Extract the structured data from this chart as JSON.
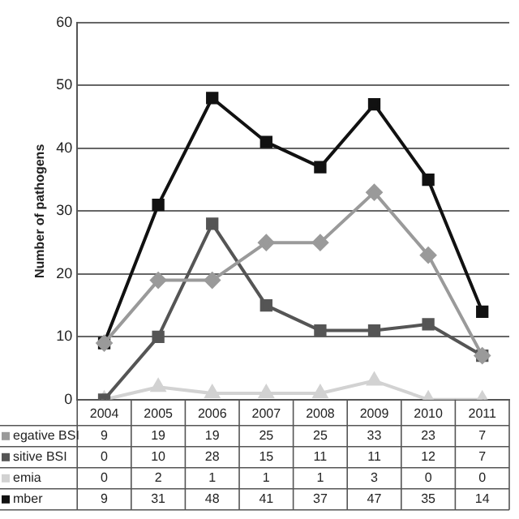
{
  "chart_data": {
    "type": "line",
    "ylabel": "Number of pathogens",
    "categories": [
      "2004",
      "2005",
      "2006",
      "2007",
      "2008",
      "2009",
      "2010",
      "2011"
    ],
    "series": [
      {
        "name": "egative BSI",
        "color": "#9a9a9a",
        "marker": "diamond",
        "values": [
          9,
          19,
          19,
          25,
          25,
          33,
          23,
          7
        ],
        "value_labels": [
          "9",
          "19",
          "19",
          "25",
          "25",
          "33",
          "23",
          "7"
        ]
      },
      {
        "name": "sitive BSI",
        "color": "#555555",
        "marker": "square",
        "values": [
          0,
          10,
          28,
          15,
          11,
          11,
          12,
          7
        ],
        "value_labels": [
          "0",
          "10",
          "28",
          "15",
          "11",
          "11",
          "12",
          "7"
        ]
      },
      {
        "name": "emia",
        "color": "#d2d2d2",
        "marker": "triangle",
        "values": [
          0,
          2,
          1,
          1,
          1,
          3,
          0,
          0
        ],
        "value_labels": [
          "0",
          "2",
          "1",
          "1",
          "1",
          "3",
          "0",
          "0"
        ]
      },
      {
        "name": "mber",
        "color": "#111111",
        "marker": "square",
        "values": [
          9,
          31,
          48,
          41,
          37,
          47,
          35,
          14
        ],
        "value_labels": [
          "9",
          "31",
          "48",
          "41",
          "37",
          "47",
          "35",
          "14"
        ]
      }
    ],
    "ylim": [
      0,
      60
    ],
    "yticks": [
      0,
      10,
      20,
      30,
      40,
      50,
      60
    ],
    "grid": "y",
    "legend": "bottom left"
  }
}
